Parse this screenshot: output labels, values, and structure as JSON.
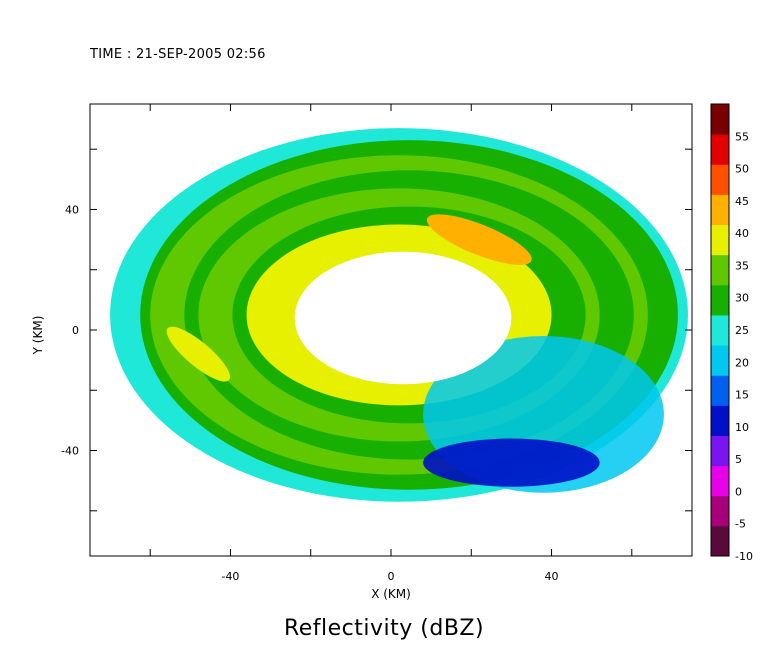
{
  "time_label": "TIME : 21-SEP-2005 02:56",
  "chart_data": {
    "type": "heatmap",
    "title": "Reflectivity (dBZ)",
    "xlabel": "X (KM)",
    "ylabel": "Y (KM)",
    "xlim": [
      -75,
      75
    ],
    "ylim": [
      -75,
      75
    ],
    "x_ticks": [
      -60,
      -40,
      -20,
      0,
      20,
      40,
      60
    ],
    "x_tick_labels": [
      "-40",
      "0",
      "40"
    ],
    "x_tick_label_values": [
      -40,
      0,
      40
    ],
    "y_ticks": [
      -60,
      -40,
      -20,
      0,
      20,
      40,
      60
    ],
    "y_tick_labels": [
      "-40",
      "0",
      "40"
    ],
    "y_tick_label_values": [
      -40,
      0,
      40
    ],
    "colorbar": {
      "min": -10,
      "max": 55,
      "step": 5,
      "labels": [
        "55",
        "50",
        "45",
        "40",
        "35",
        "30",
        "25",
        "20",
        "15",
        "10",
        "5",
        "0",
        "-5",
        "-10"
      ],
      "colors": [
        "#5a0a3a",
        "#a5007a",
        "#e800e8",
        "#7a14f0",
        "#0010c8",
        "#0060f0",
        "#00c8f0",
        "#20e8d8",
        "#18b000",
        "#60c800",
        "#e6f000",
        "#ffb000",
        "#ff5000",
        "#e00000",
        "#780000"
      ]
    },
    "bands": [
      {
        "rx": 38,
        "ry": 30,
        "dbz": 41
      },
      {
        "rx": 44,
        "ry": 36,
        "dbz": 33
      },
      {
        "rx": 50,
        "ry": 42,
        "dbz": 37
      },
      {
        "rx": 56,
        "ry": 48,
        "dbz": 30
      },
      {
        "rx": 62,
        "ry": 53,
        "dbz": 35
      },
      {
        "rx": 67,
        "ry": 58,
        "dbz": 31
      },
      {
        "rx": 72,
        "ry": 62,
        "dbz": 29
      }
    ],
    "south_east_weak_echo_dbz": 20,
    "eye_rx": 27,
    "eye_ry": 22
  }
}
